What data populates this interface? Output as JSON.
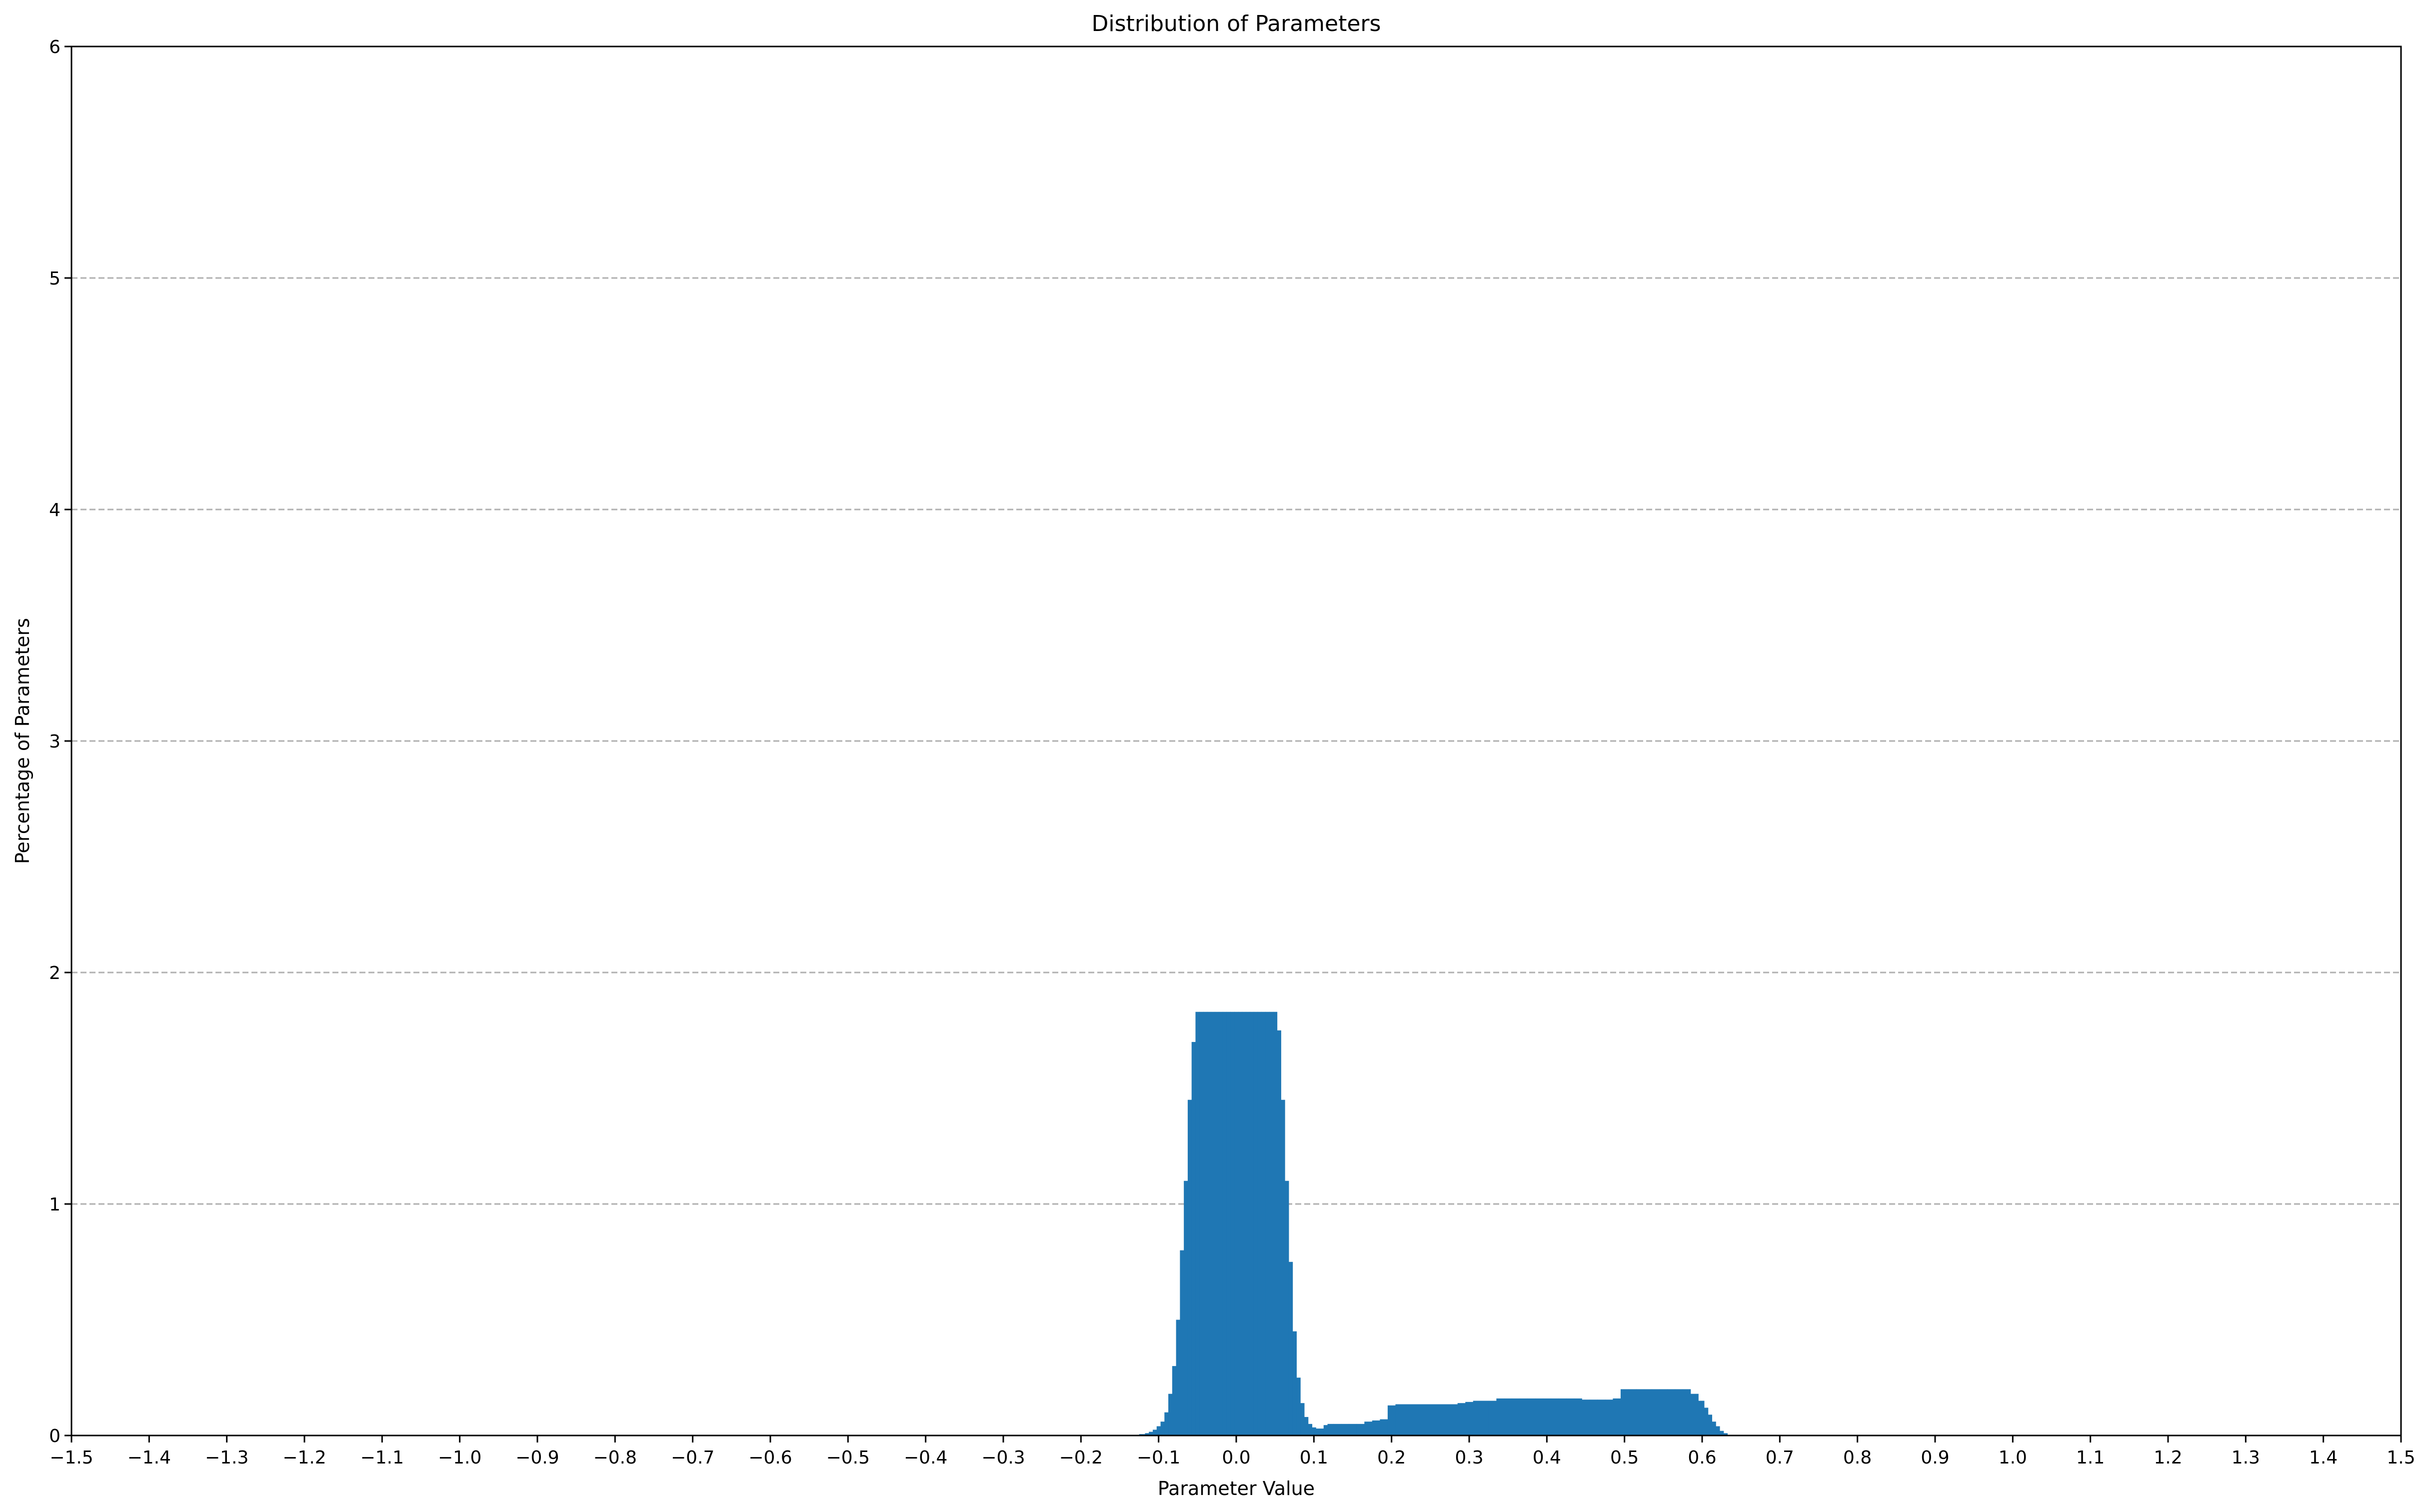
{
  "chart_data": {
    "type": "bar",
    "title": "Distribution of Parameters",
    "xlabel": "Parameter Value",
    "ylabel": "Percentage of Parameters",
    "xlim": [
      -1.5,
      1.5
    ],
    "ylim": [
      0,
      6
    ],
    "xticks": [
      "−1.5",
      "−1.4",
      "−1.3",
      "−1.2",
      "−1.1",
      "−1.0",
      "−0.9",
      "−0.8",
      "−0.7",
      "−0.6",
      "−0.5",
      "−0.4",
      "−0.3",
      "−0.2",
      "−0.1",
      "0.0",
      "0.1",
      "0.2",
      "0.3",
      "0.4",
      "0.5",
      "0.6",
      "0.7",
      "0.8",
      "0.9",
      "1.0",
      "1.1",
      "1.2",
      "1.3",
      "1.4",
      "1.5"
    ],
    "yticks": [
      "0",
      "1",
      "2",
      "3",
      "4",
      "5",
      "6"
    ],
    "grid": "y, dashed",
    "bar_color": "#1f77b4",
    "series": [
      {
        "x": [
          -0.13,
          -0.12,
          -0.115,
          -0.11,
          -0.105,
          -0.1,
          -0.095,
          -0.09,
          -0.085,
          -0.08,
          -0.075,
          -0.07,
          -0.065,
          -0.06,
          -0.055,
          -0.05,
          -0.045,
          -0.04,
          -0.035,
          -0.03,
          -0.025,
          -0.02,
          -0.015,
          -0.01,
          -0.005,
          0.0,
          0.005,
          0.01,
          0.015,
          0.02,
          0.025,
          0.03,
          0.035,
          0.04,
          0.045,
          0.05,
          0.055,
          0.06,
          0.065,
          0.07,
          0.075,
          0.08,
          0.085,
          0.09,
          0.095,
          0.1,
          0.105,
          0.11,
          0.115,
          0.12,
          0.13,
          0.14,
          0.15,
          0.16,
          0.17,
          0.18,
          0.19,
          0.2,
          0.21,
          0.22,
          0.23,
          0.24,
          0.25,
          0.26,
          0.27,
          0.28,
          0.29,
          0.3,
          0.31,
          0.32,
          0.33,
          0.34,
          0.35,
          0.36,
          0.37,
          0.38,
          0.39,
          0.4,
          0.41,
          0.42,
          0.43,
          0.44,
          0.45,
          0.46,
          0.47,
          0.48,
          0.49,
          0.5,
          0.51,
          0.52,
          0.53,
          0.54,
          0.55,
          0.56,
          0.57,
          0.58,
          0.59,
          0.6,
          0.605,
          0.61,
          0.615,
          0.62,
          0.625,
          0.63
        ],
        "y": [
          0.002,
          0.006,
          0.01,
          0.016,
          0.025,
          0.04,
          0.06,
          0.1,
          0.18,
          0.3,
          0.5,
          0.8,
          1.1,
          1.45,
          1.7,
          1.83,
          1.83,
          1.83,
          1.83,
          1.83,
          1.83,
          1.83,
          1.83,
          1.83,
          1.83,
          1.83,
          1.83,
          1.83,
          1.83,
          1.83,
          1.83,
          1.83,
          1.83,
          1.83,
          1.83,
          1.83,
          1.75,
          1.45,
          1.1,
          0.75,
          0.45,
          0.25,
          0.14,
          0.08,
          0.05,
          0.035,
          0.03,
          0.03,
          0.045,
          0.05,
          0.05,
          0.05,
          0.05,
          0.05,
          0.06,
          0.065,
          0.07,
          0.13,
          0.135,
          0.135,
          0.135,
          0.135,
          0.135,
          0.135,
          0.135,
          0.135,
          0.14,
          0.145,
          0.15,
          0.15,
          0.15,
          0.16,
          0.16,
          0.16,
          0.16,
          0.16,
          0.16,
          0.16,
          0.16,
          0.16,
          0.16,
          0.16,
          0.155,
          0.155,
          0.155,
          0.155,
          0.16,
          0.2,
          0.2,
          0.2,
          0.2,
          0.2,
          0.2,
          0.2,
          0.2,
          0.2,
          0.18,
          0.15,
          0.12,
          0.09,
          0.06,
          0.04,
          0.02,
          0.01
        ]
      }
    ]
  }
}
